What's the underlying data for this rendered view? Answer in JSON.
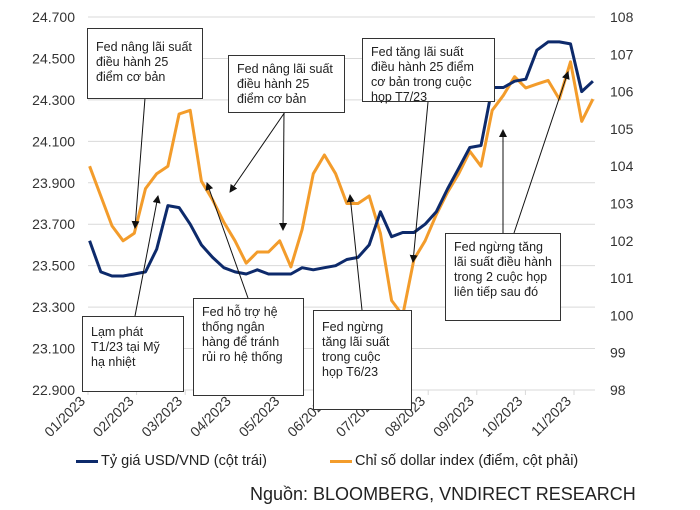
{
  "chart_data": {
    "type": "line",
    "title": "",
    "x": [
      "2023-01-02",
      "2023-01-09",
      "2023-01-16",
      "2023-01-23",
      "2023-01-30",
      "2023-02-06",
      "2023-02-13",
      "2023-02-20",
      "2023-02-27",
      "2023-03-06",
      "2023-03-13",
      "2023-03-20",
      "2023-03-27",
      "2023-04-03",
      "2023-04-10",
      "2023-04-17",
      "2023-04-24",
      "2023-05-01",
      "2023-05-08",
      "2023-05-15",
      "2023-05-22",
      "2023-05-29",
      "2023-06-05",
      "2023-06-12",
      "2023-06-19",
      "2023-06-26",
      "2023-07-03",
      "2023-07-10",
      "2023-07-17",
      "2023-07-24",
      "2023-07-31",
      "2023-08-07",
      "2023-08-14",
      "2023-08-21",
      "2023-08-28",
      "2023-09-04",
      "2023-09-11",
      "2023-09-18",
      "2023-09-25",
      "2023-10-02",
      "2023-10-09",
      "2023-10-16",
      "2023-10-23",
      "2023-10-30",
      "2023-11-06",
      "2023-11-13"
    ],
    "x_tick_labels": [
      "01/2023",
      "02/2023",
      "03/2023",
      "04/2023",
      "05/2023",
      "06/2023",
      "07/2023",
      "08/2023",
      "09/2023",
      "10/2023",
      "11/2023"
    ],
    "y_left": {
      "range": [
        22900,
        24700
      ],
      "ticks": [
        "22.900",
        "23.100",
        "23.300",
        "23.500",
        "23.700",
        "23.900",
        "24.100",
        "24.300",
        "24.500",
        "24.700"
      ]
    },
    "y_right": {
      "range": [
        98,
        108
      ],
      "ticks": [
        "98",
        "99",
        "100",
        "101",
        "102",
        "103",
        "104",
        "105",
        "106",
        "107",
        "108"
      ]
    },
    "grid": true,
    "legend_placement": "bottom",
    "series": [
      {
        "name": "Tỷ giá USD/VND (cột trái)",
        "axis": "left",
        "color": "#0d2a6b",
        "values": [
          23620,
          23470,
          23450,
          23450,
          23460,
          23470,
          23580,
          23790,
          23780,
          23700,
          23600,
          23540,
          23490,
          23470,
          23460,
          23480,
          23460,
          23460,
          23460,
          23490,
          23480,
          23490,
          23500,
          23530,
          23540,
          23600,
          23760,
          23640,
          23660,
          23660,
          23700,
          23760,
          23870,
          23970,
          24070,
          24080,
          24360,
          24360,
          24390,
          24400,
          24540,
          24580,
          24580,
          24570,
          24340,
          24390
        ]
      },
      {
        "name": "Chỉ số dollar index (điểm, cột phải)",
        "axis": "right",
        "color": "#f39c2b",
        "values": [
          104.0,
          103.2,
          102.4,
          102.0,
          102.2,
          103.4,
          103.8,
          104.0,
          105.4,
          105.5,
          103.6,
          103.1,
          102.5,
          102.0,
          101.4,
          101.7,
          101.7,
          102.0,
          101.3,
          102.3,
          103.8,
          104.3,
          103.8,
          103.0,
          103.0,
          103.2,
          102.2,
          100.4,
          100.0,
          101.5,
          102.0,
          102.7,
          103.3,
          103.8,
          104.4,
          104.0,
          105.5,
          105.9,
          106.4,
          106.1,
          106.2,
          106.3,
          105.8,
          106.8,
          105.2,
          105.8
        ]
      }
    ],
    "annotations": [
      "Fed nâng lãi suất điều hành 25 điểm cơ bản",
      "Fed nâng lãi suất điều hành 25 điểm cơ bản",
      "Fed tăng lãi suất điều hành 25 điểm cơ bản trong cuộc họp T7/23",
      "Fed ngừng tăng lãi suất điều hành trong 2 cuộc họp liên tiếp sau đó",
      "Lạm phát T1/23 tại Mỹ hạ nhiệt",
      "Fed hỗ trợ hệ thống ngân hàng để tránh rủi ro hệ thống",
      "Fed ngừng tăng lãi suất trong cuộc họp T6/23"
    ]
  },
  "source": "Nguồn:  BLOOMBERG, VNDIRECT RESEARCH"
}
